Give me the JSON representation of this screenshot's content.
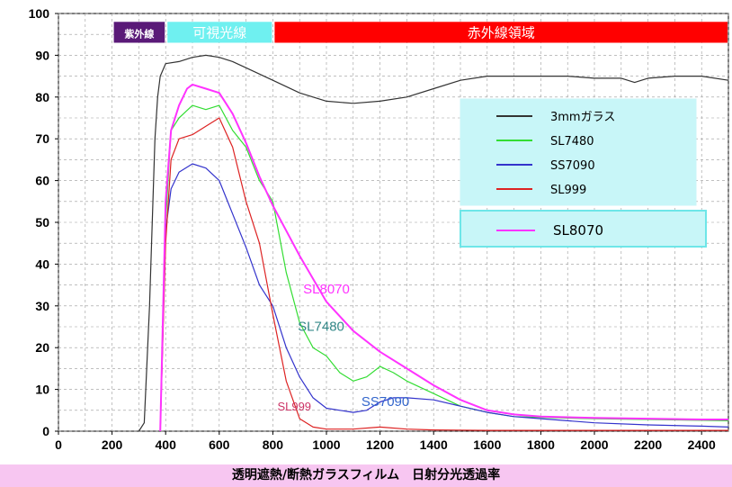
{
  "caption": "透明遮熱/断熱ガラスフィルム　日射分光透過率",
  "chart_data": {
    "type": "line",
    "xlim": [
      0,
      2500
    ],
    "ylim": [
      0,
      100
    ],
    "xticks": [
      0,
      200,
      400,
      600,
      800,
      1000,
      1200,
      1400,
      1600,
      1800,
      2000,
      2200,
      2400
    ],
    "yticks": [
      0,
      10,
      20,
      30,
      40,
      50,
      60,
      70,
      80,
      90,
      100
    ],
    "grid": true,
    "bands": [
      {
        "label": "紫外線",
        "from": 200,
        "to": 400,
        "color": "#5a1a78",
        "text_color": "#ffffff"
      },
      {
        "label": "可視光線",
        "from": 400,
        "to": 800,
        "color": "#6ff0f0",
        "text_color": "#ffffff"
      },
      {
        "label": "赤外線領域",
        "from": 800,
        "to": 2500,
        "color": "#ff0000",
        "text_color": "#ffffff"
      }
    ],
    "legend": {
      "placement": "right",
      "entries": [
        {
          "name": "3mmガラス",
          "color": "#333333"
        },
        {
          "name": "SL7480",
          "color": "#33dd33"
        },
        {
          "name": "SS7090",
          "color": "#3333cc"
        },
        {
          "name": "SL999",
          "color": "#dd2222"
        }
      ],
      "extra_entry": {
        "name": "SL8070",
        "color": "#ff33ff"
      }
    },
    "annotations": [
      {
        "text": "SL8070",
        "x": 1000,
        "y": 33,
        "color": "#ff33ff"
      },
      {
        "text": "SL7480",
        "x": 980,
        "y": 24,
        "color": "#338888"
      },
      {
        "text": "SS7090",
        "x": 1220,
        "y": 6,
        "color": "#3366cc"
      },
      {
        "text": "SL999",
        "x": 880,
        "y": 5,
        "color": "#cc3366"
      }
    ],
    "series": [
      {
        "name": "3mmガラス",
        "color": "#333333",
        "x": [
          300,
          320,
          340,
          360,
          370,
          380,
          400,
          450,
          500,
          550,
          600,
          650,
          700,
          800,
          900,
          1000,
          1100,
          1200,
          1300,
          1400,
          1500,
          1600,
          1700,
          1800,
          1900,
          2000,
          2100,
          2150,
          2200,
          2300,
          2400,
          2500
        ],
        "y": [
          0,
          2,
          30,
          70,
          80,
          85,
          88,
          88.5,
          89.5,
          90,
          89.5,
          88.5,
          87,
          84,
          81,
          79,
          78.5,
          79,
          80,
          82,
          84,
          85,
          85,
          85,
          85,
          84.5,
          84.5,
          83.5,
          84.5,
          85,
          85,
          84
        ]
      },
      {
        "name": "SL7480",
        "color": "#33dd33",
        "x": [
          380,
          400,
          420,
          450,
          500,
          550,
          600,
          650,
          700,
          750,
          800,
          850,
          900,
          950,
          1000,
          1050,
          1100,
          1150,
          1200,
          1250,
          1300,
          1400,
          1500,
          1600,
          1700,
          1800,
          2000,
          2200,
          2400,
          2500
        ],
        "y": [
          0,
          50,
          72,
          75,
          78,
          77,
          78,
          72,
          68,
          60,
          55,
          38,
          26,
          20,
          18,
          14,
          12,
          13,
          15.5,
          14,
          12,
          9,
          6,
          4.5,
          3.5,
          3.3,
          3,
          2.8,
          2.6,
          2.5
        ]
      },
      {
        "name": "SS7090",
        "color": "#3333cc",
        "x": [
          380,
          400,
          420,
          450,
          500,
          550,
          600,
          650,
          700,
          750,
          800,
          850,
          900,
          950,
          1000,
          1050,
          1100,
          1150,
          1200,
          1250,
          1300,
          1400,
          1500,
          1600,
          1700,
          1800,
          2000,
          2200,
          2400,
          2500
        ],
        "y": [
          0,
          48,
          58,
          62,
          64,
          63,
          60,
          52,
          44,
          35,
          30,
          20,
          13,
          8,
          5.5,
          5,
          4.5,
          5,
          7,
          8,
          8,
          7.5,
          6,
          4.5,
          3.5,
          3,
          2,
          1.5,
          1.2,
          1
        ]
      },
      {
        "name": "SL999",
        "color": "#dd2222",
        "x": [
          380,
          400,
          420,
          450,
          500,
          550,
          600,
          650,
          700,
          750,
          800,
          850,
          900,
          950,
          1000,
          1100,
          1200,
          1300,
          1400,
          1600,
          2000,
          2500
        ],
        "y": [
          0,
          45,
          65,
          70,
          71,
          73,
          75,
          68,
          55,
          45,
          28,
          12,
          3,
          1,
          0.5,
          0.5,
          1,
          0.5,
          0.3,
          0.2,
          0.2,
          0.2
        ]
      },
      {
        "name": "SL8070",
        "color": "#ff33ff",
        "x": [
          380,
          400,
          420,
          450,
          480,
          500,
          550,
          600,
          650,
          700,
          750,
          800,
          900,
          1000,
          1100,
          1200,
          1300,
          1400,
          1500,
          1600,
          1700,
          1800,
          2000,
          2200,
          2400,
          2500
        ],
        "y": [
          0,
          55,
          72,
          78,
          82,
          83,
          82,
          81,
          76,
          69,
          61,
          54,
          42,
          31,
          24,
          19,
          15,
          11,
          7.5,
          5,
          4,
          3.5,
          3.2,
          3,
          2.8,
          2.8
        ]
      }
    ]
  }
}
